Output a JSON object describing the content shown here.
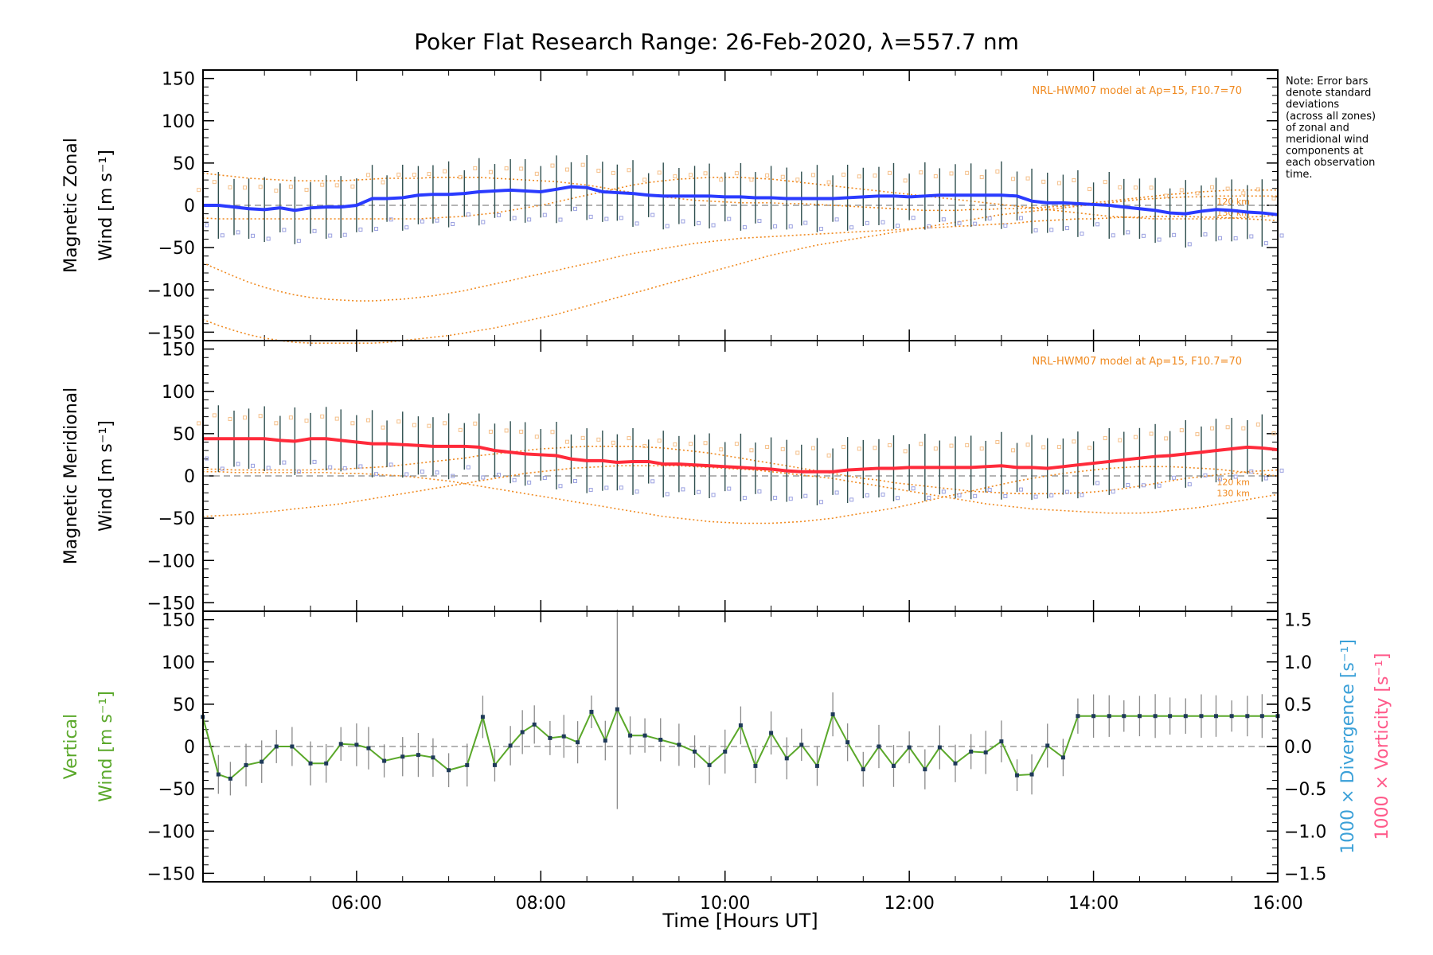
{
  "title": "Poker Flat Research Range: 26-Feb-2020, λ=557.7 nm",
  "note": [
    "Note: Error bars",
    "denote standard",
    "deviations",
    "(across all zones)",
    "of zonal and",
    "meridional wind",
    "components at",
    "each observation",
    "time."
  ],
  "x_tick_labels": [
    "06:00",
    "08:00",
    "10:00",
    "12:00",
    "14:00",
    "16:00"
  ],
  "xlabel": "Time [Hours UT]",
  "y_tick_labels": [
    "150",
    "100",
    "50",
    "0",
    "−50",
    "−100",
    "−150"
  ],
  "right_tick_labels": [
    "1.5",
    "1.0",
    "0.5",
    "0.0",
    "−0.5",
    "−1.0",
    "−1.5"
  ],
  "right_axis": {
    "divergence_label": "1000 × Divergence [s⁻¹]",
    "vorticity_label": "1000 × Vorticity [s⁻¹]"
  },
  "model_label": "NRL-HWM07 model at Ap=15, F10.7=70",
  "alt_labels": [
    "120 km",
    "130 km"
  ],
  "panels": [
    {
      "label_line1": "Magnetic Zonal",
      "label_line2": "Wind [m s⁻¹]"
    },
    {
      "label_line1": "Magnetic Meridional",
      "label_line2": "Wind [m s⁻¹]"
    },
    {
      "label_line1": "Vertical",
      "label_line2": "Wind [m s⁻¹]"
    }
  ],
  "colors": {
    "zonal": "#2a3bff",
    "meridional": "#ff2a3a",
    "vertical": "#5aa82a",
    "model": "#f08a20",
    "divergence": "#3aa0d8",
    "vorticity": "#ff5a8a",
    "errorbar": "#505050"
  },
  "chart_data": [
    {
      "type": "line",
      "title": "Poker Flat Research Range: 26-Feb-2020, λ=557.7 nm",
      "ylabel": "Magnetic Zonal Wind [m s⁻¹]",
      "xlim": [
        4.333,
        16.0
      ],
      "ylim": [
        -160,
        160
      ],
      "x": [
        4.33,
        4.5,
        4.67,
        4.83,
        5.0,
        5.17,
        5.33,
        5.5,
        5.67,
        5.83,
        6.0,
        6.17,
        6.33,
        6.5,
        6.67,
        6.83,
        7.0,
        7.17,
        7.33,
        7.5,
        7.67,
        7.83,
        8.0,
        8.17,
        8.33,
        8.5,
        8.67,
        8.83,
        9.0,
        9.17,
        9.33,
        9.5,
        9.67,
        9.83,
        10.0,
        10.17,
        10.33,
        10.5,
        10.67,
        10.83,
        11.0,
        11.17,
        11.33,
        11.5,
        11.67,
        11.83,
        12.0,
        12.17,
        12.33,
        12.5,
        12.67,
        12.83,
        13.0,
        13.17,
        13.33,
        13.5,
        13.67,
        13.83,
        14.0,
        14.17,
        14.33,
        14.5,
        14.67,
        14.83,
        15.0,
        15.17,
        15.33,
        15.5,
        15.67,
        15.83,
        16.0
      ],
      "series": [
        {
          "values": [
            0,
            0,
            -2,
            -4,
            -5,
            -3,
            -6,
            -3,
            -2,
            -2,
            0,
            8,
            8,
            9,
            12,
            13,
            13,
            14,
            16,
            17,
            18,
            17,
            16,
            19,
            22,
            21,
            16,
            15,
            14,
            12,
            11,
            11,
            11,
            11,
            10,
            10,
            9,
            9,
            8,
            8,
            8,
            8,
            9,
            10,
            11,
            11,
            10,
            11,
            12,
            12,
            12,
            12,
            12,
            11,
            5,
            3,
            3,
            2,
            1,
            0,
            -2,
            -4,
            -6,
            -9,
            -10,
            -7,
            -5,
            -6,
            -8,
            -9,
            -11
          ]
        },
        {
          "name": "120 km",
          "values": [
            38,
            36,
            34,
            32,
            31,
            30,
            29,
            29,
            29,
            29,
            30,
            31,
            32,
            32,
            32,
            33,
            33,
            33,
            33,
            32,
            31,
            30,
            29,
            28,
            26,
            24,
            21,
            18,
            15,
            12,
            10,
            8,
            6,
            5,
            4,
            3,
            3,
            3,
            2,
            2,
            1,
            0,
            -1,
            -2,
            -3,
            -4,
            -5,
            -6,
            -6,
            -6,
            -5,
            -5,
            -4,
            -4,
            -3,
            -2,
            -1,
            1,
            3,
            5,
            7,
            9,
            11,
            13,
            14,
            16,
            17,
            18,
            18,
            18,
            18
          ]
        },
        {
          "name": "130 km",
          "values": [
            -68,
            -76,
            -84,
            -91,
            -97,
            -102,
            -106,
            -109,
            -111,
            -112,
            -113,
            -113,
            -112,
            -111,
            -109,
            -107,
            -104,
            -101,
            -97,
            -93,
            -89,
            -85,
            -81,
            -77,
            -73,
            -69,
            -65,
            -61,
            -57,
            -54,
            -51,
            -48,
            -45,
            -43,
            -41,
            -39,
            -38,
            -37,
            -36,
            -35,
            -34,
            -33,
            -32,
            -31,
            -30,
            -29,
            -28,
            -27,
            -26,
            -25,
            -24,
            -23,
            -22,
            -21,
            -19,
            -18,
            -17,
            -16,
            -16,
            -15,
            -14,
            -14,
            -13,
            -13,
            -13,
            -14,
            -14,
            -15,
            -16,
            -17,
            -18
          ]
        },
        {
          "values": [
            -135,
            -142,
            -148,
            -153,
            -157,
            -160,
            -162,
            -163,
            -163,
            -163,
            -163,
            -163,
            -162,
            -160,
            -158,
            -156,
            -154,
            -151,
            -148,
            -145,
            -141,
            -137,
            -133,
            -129,
            -124,
            -119,
            -114,
            -109,
            -104,
            -99,
            -94,
            -89,
            -84,
            -79,
            -74,
            -69,
            -64,
            -59,
            -55,
            -51,
            -47,
            -44,
            -41,
            -38,
            -35,
            -32,
            -29,
            -26,
            -23,
            -20,
            -17,
            -14,
            -11,
            -9,
            -7,
            -5,
            -3,
            -1,
            1,
            3,
            5,
            7,
            8,
            9,
            10,
            10,
            11,
            11,
            11,
            11,
            11
          ]
        },
        {
          "values": [
            -15,
            -16,
            -16,
            -16,
            -16,
            -16,
            -16,
            -16,
            -16,
            -16,
            -16,
            -16,
            -16,
            -16,
            -16,
            -15,
            -14,
            -13,
            -11,
            -9,
            -6,
            -3,
            0,
            4,
            8,
            12,
            16,
            20,
            24,
            27,
            29,
            31,
            32,
            33,
            33,
            33,
            32,
            31,
            29,
            27,
            25,
            23,
            21,
            19,
            17,
            15,
            13,
            11,
            9,
            7,
            5,
            3,
            1,
            -1,
            -3,
            -5,
            -7,
            -9,
            -11,
            -13,
            -14,
            -15,
            -16,
            -16,
            -16,
            -16,
            -16,
            -15,
            -14,
            -13,
            -12
          ]
        }
      ]
    },
    {
      "type": "line",
      "ylabel": "Magnetic Meridional Wind [m s⁻¹]",
      "xlim": [
        4.333,
        16.0
      ],
      "ylim": [
        -160,
        160
      ],
      "x": [
        4.33,
        4.5,
        4.67,
        4.83,
        5.0,
        5.17,
        5.33,
        5.5,
        5.67,
        5.83,
        6.0,
        6.17,
        6.33,
        6.5,
        6.67,
        6.83,
        7.0,
        7.17,
        7.33,
        7.5,
        7.67,
        7.83,
        8.0,
        8.17,
        8.33,
        8.5,
        8.67,
        8.83,
        9.0,
        9.17,
        9.33,
        9.5,
        9.67,
        9.83,
        10.0,
        10.17,
        10.33,
        10.5,
        10.67,
        10.83,
        11.0,
        11.17,
        11.33,
        11.5,
        11.67,
        11.83,
        12.0,
        12.17,
        12.33,
        12.5,
        12.67,
        12.83,
        13.0,
        13.17,
        13.33,
        13.5,
        13.67,
        13.83,
        14.0,
        14.17,
        14.33,
        14.5,
        14.67,
        14.83,
        15.0,
        15.17,
        15.33,
        15.5,
        15.67,
        15.83,
        16.0
      ],
      "series": [
        {
          "values": [
            44,
            44,
            44,
            44,
            44,
            42,
            41,
            44,
            44,
            42,
            40,
            38,
            38,
            37,
            36,
            35,
            35,
            35,
            34,
            30,
            28,
            26,
            25,
            24,
            20,
            18,
            18,
            16,
            17,
            17,
            14,
            14,
            13,
            12,
            11,
            10,
            9,
            8,
            6,
            5,
            5,
            5,
            7,
            8,
            9,
            9,
            10,
            10,
            10,
            10,
            10,
            11,
            12,
            10,
            10,
            9,
            11,
            13,
            15,
            17,
            19,
            21,
            23,
            24,
            26,
            28,
            30,
            32,
            34,
            33,
            31
          ]
        },
        {
          "name": "120 km",
          "values": [
            8,
            8,
            7,
            7,
            7,
            7,
            7,
            7,
            8,
            8,
            9,
            10,
            11,
            13,
            15,
            17,
            19,
            21,
            24,
            26,
            28,
            30,
            32,
            33,
            34,
            35,
            35,
            35,
            35,
            34,
            33,
            31,
            29,
            27,
            24,
            21,
            18,
            15,
            12,
            9,
            6,
            3,
            0,
            -3,
            -5,
            -8,
            -10,
            -12,
            -14,
            -16,
            -18,
            -19,
            -20,
            -21,
            -21,
            -21,
            -21,
            -20,
            -19,
            -17,
            -15,
            -12,
            -9,
            -6,
            -3,
            -1,
            1,
            3,
            5,
            6,
            7
          ]
        },
        {
          "name": "130 km",
          "values": [
            -48,
            -47,
            -46,
            -45,
            -43,
            -41,
            -39,
            -37,
            -35,
            -33,
            -30,
            -27,
            -24,
            -21,
            -18,
            -15,
            -12,
            -9,
            -6,
            -3,
            0,
            3,
            5,
            7,
            9,
            10,
            11,
            12,
            12,
            12,
            12,
            12,
            11,
            10,
            9,
            8,
            7,
            5,
            3,
            1,
            -1,
            -3,
            -6,
            -9,
            -12,
            -15,
            -18,
            -21,
            -24,
            -27,
            -30,
            -33,
            -35,
            -37,
            -39,
            -40,
            -41,
            -42,
            -43,
            -44,
            -44,
            -44,
            -43,
            -41,
            -39,
            -37,
            -34,
            -31,
            -28,
            -25,
            -22
          ]
        },
        {
          "values": [
            5,
            5,
            4,
            4,
            4,
            4,
            4,
            4,
            4,
            3,
            3,
            2,
            1,
            0,
            -2,
            -4,
            -6,
            -9,
            -12,
            -15,
            -18,
            -21,
            -24,
            -27,
            -30,
            -33,
            -36,
            -39,
            -42,
            -45,
            -48,
            -50,
            -52,
            -54,
            -55,
            -56,
            -56,
            -56,
            -55,
            -54,
            -52,
            -50,
            -47,
            -44,
            -41,
            -38,
            -34,
            -30,
            -26,
            -22,
            -18,
            -14,
            -10,
            -6,
            -3,
            0,
            3,
            5,
            7,
            9,
            10,
            11,
            11,
            11,
            10,
            9,
            8,
            6,
            4,
            2,
            0
          ]
        }
      ]
    },
    {
      "type": "line",
      "ylabel": "Vertical Wind [m s⁻¹]",
      "xlabel": "Time [Hours UT]",
      "xlim": [
        4.333,
        16.0
      ],
      "ylim": [
        -160,
        160
      ],
      "y2lim": [
        -1.6,
        1.6
      ],
      "x": [
        4.33,
        4.5,
        4.63,
        4.8,
        4.97,
        5.13,
        5.3,
        5.5,
        5.67,
        5.83,
        6.0,
        6.13,
        6.3,
        6.5,
        6.67,
        6.83,
        7.0,
        7.2,
        7.37,
        7.5,
        7.67,
        7.8,
        7.93,
        8.1,
        8.25,
        8.4,
        8.55,
        8.7,
        8.83,
        8.97,
        9.13,
        9.3,
        9.5,
        9.67,
        9.83,
        10.0,
        10.17,
        10.33,
        10.5,
        10.67,
        10.83,
        11.0,
        11.17,
        11.33,
        11.5,
        11.67,
        11.83,
        12.0,
        12.17,
        12.33,
        12.5,
        12.67,
        12.83,
        13.0,
        13.17,
        13.33,
        13.5,
        13.67,
        13.83,
        14.0,
        14.17,
        14.33,
        14.5,
        14.67,
        14.83,
        15.0,
        15.17,
        15.33,
        15.5,
        15.67,
        15.83,
        16.0
      ],
      "series": [
        {
          "name": "Vertical",
          "values": [
            35,
            -33,
            -38,
            -22,
            -18,
            0,
            0,
            -20,
            -20,
            3,
            2,
            -2,
            -17,
            -12,
            -10,
            -13,
            -28,
            -22,
            35,
            -22,
            1,
            17,
            26,
            10,
            12,
            5,
            41,
            7,
            44,
            13,
            13,
            8,
            2,
            -6,
            -22,
            -6,
            25,
            -23,
            16,
            -14,
            2,
            -23,
            38,
            5,
            -27,
            0,
            -23,
            -1,
            -27,
            -1,
            -20,
            -6,
            -7,
            6,
            -34,
            -33,
            1,
            -13,
            36,
            36,
            36,
            36,
            36,
            36,
            36,
            36,
            36,
            36,
            36,
            36,
            36,
            36
          ]
        }
      ]
    }
  ]
}
